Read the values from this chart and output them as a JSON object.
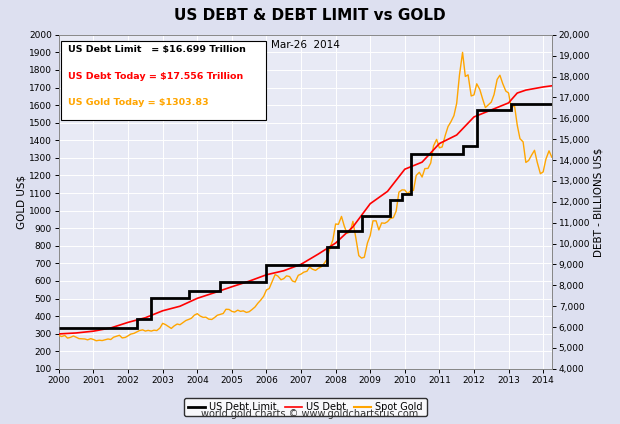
{
  "title": "US DEBT & DEBT LIMIT vs GOLD",
  "title_bg": "#9999cc",
  "subtitle": "Mar-26  2014",
  "annotation_lines": [
    {
      "text": "US Debt Limit   = $16.699 Trillion",
      "color": "black"
    },
    {
      "text": "US Debt Today = $17.556 Trillion",
      "color": "red"
    },
    {
      "text": "US Gold Today = $1303.83",
      "color": "orange"
    }
  ],
  "ylabel_left": "GOLD US$",
  "ylabel_right": "DEBT - BILLIONS US$",
  "watermark": "world gold charts © www.goldchartsrus.com",
  "ylim_left": [
    100,
    2000
  ],
  "ylim_right": [
    4000,
    20000
  ],
  "yticks_left": [
    100,
    200,
    300,
    400,
    500,
    600,
    700,
    800,
    900,
    1000,
    1100,
    1200,
    1300,
    1400,
    1500,
    1600,
    1700,
    1800,
    1900,
    2000
  ],
  "yticks_right": [
    4000,
    5000,
    6000,
    7000,
    8000,
    9000,
    10000,
    11000,
    12000,
    13000,
    14000,
    15000,
    16000,
    17000,
    18000,
    19000,
    20000
  ],
  "xlim": [
    2000,
    2014.25
  ],
  "xticks": [
    2000,
    2001,
    2002,
    2003,
    2004,
    2005,
    2006,
    2007,
    2008,
    2009,
    2010,
    2011,
    2012,
    2013,
    2014
  ],
  "bg_color": "#dde0f0",
  "plot_bg": "#e8eaf5",
  "grid_color": "#ffffff",
  "debt_limit_steps": [
    [
      2000.0,
      5950
    ],
    [
      2002.25,
      6400
    ],
    [
      2002.67,
      7384
    ],
    [
      2003.75,
      7720
    ],
    [
      2004.67,
      8184
    ],
    [
      2006.0,
      8965
    ],
    [
      2007.75,
      9815
    ],
    [
      2008.08,
      10615
    ],
    [
      2008.75,
      11315
    ],
    [
      2009.58,
      12104
    ],
    [
      2009.92,
      12394
    ],
    [
      2010.17,
      14294
    ],
    [
      2011.67,
      14694
    ],
    [
      2012.08,
      16394
    ],
    [
      2013.08,
      16699
    ],
    [
      2014.25,
      16699
    ]
  ],
  "us_debt_points": [
    [
      2000.0,
      5674
    ],
    [
      2000.5,
      5720
    ],
    [
      2001.0,
      5807
    ],
    [
      2001.5,
      5960
    ],
    [
      2002.0,
      6228
    ],
    [
      2002.5,
      6450
    ],
    [
      2003.0,
      6783
    ],
    [
      2003.5,
      7000
    ],
    [
      2004.0,
      7379
    ],
    [
      2004.5,
      7650
    ],
    [
      2005.0,
      7933
    ],
    [
      2005.5,
      8200
    ],
    [
      2006.0,
      8507
    ],
    [
      2006.5,
      8700
    ],
    [
      2007.0,
      9008
    ],
    [
      2007.5,
      9500
    ],
    [
      2008.0,
      10025
    ],
    [
      2008.5,
      10800
    ],
    [
      2009.0,
      11910
    ],
    [
      2009.5,
      12500
    ],
    [
      2010.0,
      13562
    ],
    [
      2010.5,
      13900
    ],
    [
      2011.0,
      14790
    ],
    [
      2011.5,
      15200
    ],
    [
      2012.0,
      16066
    ],
    [
      2012.5,
      16400
    ],
    [
      2013.0,
      16738
    ],
    [
      2013.25,
      17209
    ],
    [
      2013.5,
      17350
    ],
    [
      2014.0,
      17500
    ],
    [
      2014.25,
      17556
    ]
  ],
  "gold_data": [
    [
      2000.0,
      290
    ],
    [
      2000.08,
      284
    ],
    [
      2000.17,
      290
    ],
    [
      2000.25,
      275
    ],
    [
      2000.33,
      279
    ],
    [
      2000.42,
      287
    ],
    [
      2000.5,
      280
    ],
    [
      2000.58,
      272
    ],
    [
      2000.67,
      271
    ],
    [
      2000.75,
      270
    ],
    [
      2000.83,
      265
    ],
    [
      2000.92,
      272
    ],
    [
      2001.0,
      267
    ],
    [
      2001.08,
      260
    ],
    [
      2001.17,
      263
    ],
    [
      2001.25,
      261
    ],
    [
      2001.33,
      265
    ],
    [
      2001.42,
      270
    ],
    [
      2001.5,
      267
    ],
    [
      2001.58,
      280
    ],
    [
      2001.67,
      286
    ],
    [
      2001.75,
      291
    ],
    [
      2001.83,
      276
    ],
    [
      2001.92,
      279
    ],
    [
      2002.0,
      288
    ],
    [
      2002.08,
      298
    ],
    [
      2002.17,
      302
    ],
    [
      2002.25,
      310
    ],
    [
      2002.33,
      318
    ],
    [
      2002.42,
      322
    ],
    [
      2002.5,
      315
    ],
    [
      2002.58,
      319
    ],
    [
      2002.67,
      315
    ],
    [
      2002.75,
      320
    ],
    [
      2002.83,
      318
    ],
    [
      2002.92,
      332
    ],
    [
      2003.0,
      359
    ],
    [
      2003.08,
      352
    ],
    [
      2003.17,
      340
    ],
    [
      2003.25,
      330
    ],
    [
      2003.33,
      344
    ],
    [
      2003.42,
      355
    ],
    [
      2003.5,
      351
    ],
    [
      2003.58,
      362
    ],
    [
      2003.67,
      375
    ],
    [
      2003.75,
      381
    ],
    [
      2003.83,
      388
    ],
    [
      2003.92,
      406
    ],
    [
      2004.0,
      414
    ],
    [
      2004.08,
      401
    ],
    [
      2004.17,
      393
    ],
    [
      2004.25,
      394
    ],
    [
      2004.33,
      383
    ],
    [
      2004.42,
      381
    ],
    [
      2004.5,
      392
    ],
    [
      2004.58,
      405
    ],
    [
      2004.67,
      410
    ],
    [
      2004.75,
      415
    ],
    [
      2004.83,
      439
    ],
    [
      2004.92,
      438
    ],
    [
      2005.0,
      427
    ],
    [
      2005.08,
      423
    ],
    [
      2005.17,
      434
    ],
    [
      2005.25,
      427
    ],
    [
      2005.33,
      430
    ],
    [
      2005.42,
      421
    ],
    [
      2005.5,
      425
    ],
    [
      2005.58,
      437
    ],
    [
      2005.67,
      452
    ],
    [
      2005.75,
      473
    ],
    [
      2005.83,
      490
    ],
    [
      2005.92,
      513
    ],
    [
      2006.0,
      549
    ],
    [
      2006.08,
      557
    ],
    [
      2006.17,
      599
    ],
    [
      2006.25,
      636
    ],
    [
      2006.33,
      628
    ],
    [
      2006.42,
      607
    ],
    [
      2006.5,
      613
    ],
    [
      2006.58,
      629
    ],
    [
      2006.67,
      625
    ],
    [
      2006.75,
      600
    ],
    [
      2006.83,
      594
    ],
    [
      2006.92,
      632
    ],
    [
      2007.0,
      639
    ],
    [
      2007.08,
      650
    ],
    [
      2007.17,
      655
    ],
    [
      2007.25,
      679
    ],
    [
      2007.33,
      667
    ],
    [
      2007.42,
      660
    ],
    [
      2007.5,
      672
    ],
    [
      2007.58,
      680
    ],
    [
      2007.67,
      700
    ],
    [
      2007.75,
      723
    ],
    [
      2007.83,
      784
    ],
    [
      2007.92,
      833
    ],
    [
      2008.0,
      924
    ],
    [
      2008.08,
      922
    ],
    [
      2008.17,
      967
    ],
    [
      2008.25,
      912
    ],
    [
      2008.33,
      871
    ],
    [
      2008.42,
      878
    ],
    [
      2008.5,
      939
    ],
    [
      2008.58,
      850
    ],
    [
      2008.67,
      744
    ],
    [
      2008.75,
      730
    ],
    [
      2008.83,
      735
    ],
    [
      2008.92,
      816
    ],
    [
      2009.0,
      858
    ],
    [
      2009.08,
      942
    ],
    [
      2009.17,
      942
    ],
    [
      2009.25,
      890
    ],
    [
      2009.33,
      930
    ],
    [
      2009.42,
      928
    ],
    [
      2009.5,
      937
    ],
    [
      2009.58,
      955
    ],
    [
      2009.67,
      960
    ],
    [
      2009.75,
      997
    ],
    [
      2009.83,
      1105
    ],
    [
      2009.92,
      1118
    ],
    [
      2010.0,
      1117
    ],
    [
      2010.08,
      1096
    ],
    [
      2010.17,
      1113
    ],
    [
      2010.25,
      1115
    ],
    [
      2010.33,
      1200
    ],
    [
      2010.42,
      1218
    ],
    [
      2010.5,
      1191
    ],
    [
      2010.58,
      1239
    ],
    [
      2010.67,
      1240
    ],
    [
      2010.75,
      1271
    ],
    [
      2010.83,
      1368
    ],
    [
      2010.92,
      1405
    ],
    [
      2011.0,
      1357
    ],
    [
      2011.08,
      1362
    ],
    [
      2011.17,
      1428
    ],
    [
      2011.25,
      1478
    ],
    [
      2011.33,
      1504
    ],
    [
      2011.42,
      1540
    ],
    [
      2011.5,
      1610
    ],
    [
      2011.58,
      1770
    ],
    [
      2011.67,
      1900
    ],
    [
      2011.75,
      1763
    ],
    [
      2011.83,
      1772
    ],
    [
      2011.92,
      1652
    ],
    [
      2012.0,
      1658
    ],
    [
      2012.08,
      1721
    ],
    [
      2012.17,
      1688
    ],
    [
      2012.25,
      1635
    ],
    [
      2012.33,
      1586
    ],
    [
      2012.42,
      1602
    ],
    [
      2012.5,
      1617
    ],
    [
      2012.58,
      1660
    ],
    [
      2012.67,
      1746
    ],
    [
      2012.75,
      1770
    ],
    [
      2012.83,
      1723
    ],
    [
      2012.92,
      1680
    ],
    [
      2013.0,
      1669
    ],
    [
      2013.08,
      1582
    ],
    [
      2013.17,
      1600
    ],
    [
      2013.25,
      1487
    ],
    [
      2013.33,
      1409
    ],
    [
      2013.42,
      1391
    ],
    [
      2013.5,
      1274
    ],
    [
      2013.58,
      1285
    ],
    [
      2013.67,
      1317
    ],
    [
      2013.75,
      1343
    ],
    [
      2013.83,
      1274
    ],
    [
      2013.92,
      1210
    ],
    [
      2014.0,
      1220
    ],
    [
      2014.08,
      1293
    ],
    [
      2014.17,
      1340
    ],
    [
      2014.25,
      1304
    ]
  ]
}
